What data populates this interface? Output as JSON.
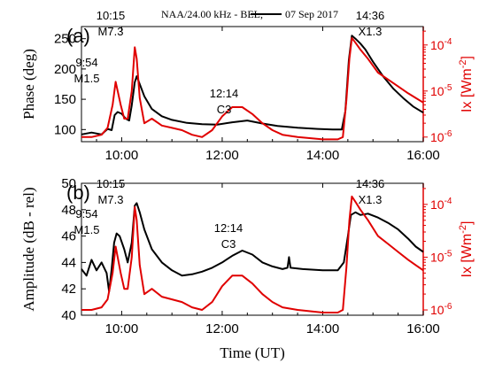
{
  "chart_data": [
    {
      "type": "line",
      "panel_label": "(a)",
      "title": "NAA/24.00 kHz - BEL,",
      "title_date": "07 Sep 2017",
      "ylabel": "Phase (deg)",
      "ylabel_right": "Ix [Wm",
      "ylabel_right_exp": "-2",
      "ylabel_right_close": "]",
      "ylim": [
        80,
        270
      ],
      "yticks": [
        "100",
        "150",
        "200",
        "250"
      ],
      "ylim_right_log10": [
        -6.1,
        -3.6
      ],
      "yticks_right": [
        {
          "mant": "10",
          "exp": "-6"
        },
        {
          "mant": "10",
          "exp": "-5"
        },
        {
          "mant": "10",
          "exp": "-4"
        }
      ],
      "xlim": [
        9.2,
        16.0
      ],
      "annotations": [
        {
          "time": "9:54",
          "cls": "M1.5"
        },
        {
          "time": "10:15",
          "cls": "M7.3"
        },
        {
          "time": "12:14",
          "cls": "C3"
        },
        {
          "time": "14:36",
          "cls": "X1.3"
        }
      ],
      "series": [
        {
          "color": "#000000",
          "axis": "left",
          "points": [
            [
              9.2,
              92
            ],
            [
              9.4,
              95
            ],
            [
              9.6,
              92
            ],
            [
              9.72,
              101
            ],
            [
              9.8,
              99
            ],
            [
              9.86,
              124
            ],
            [
              9.92,
              129
            ],
            [
              10.0,
              126
            ],
            [
              10.08,
              118
            ],
            [
              10.15,
              115
            ],
            [
              10.2,
              140
            ],
            [
              10.26,
              178
            ],
            [
              10.3,
              188
            ],
            [
              10.36,
              175
            ],
            [
              10.45,
              155
            ],
            [
              10.6,
              134
            ],
            [
              10.8,
              122
            ],
            [
              11.0,
              116
            ],
            [
              11.3,
              111
            ],
            [
              11.6,
              109
            ],
            [
              11.9,
              108
            ],
            [
              12.2,
              112
            ],
            [
              12.5,
              115
            ],
            [
              12.8,
              110
            ],
            [
              13.1,
              106
            ],
            [
              13.5,
              103
            ],
            [
              13.9,
              101
            ],
            [
              14.2,
              100
            ],
            [
              14.38,
              100
            ],
            [
              14.45,
              130
            ],
            [
              14.52,
              215
            ],
            [
              14.58,
              255
            ],
            [
              14.65,
              250
            ],
            [
              14.75,
              242
            ],
            [
              14.85,
              232
            ],
            [
              15.0,
              212
            ],
            [
              15.2,
              188
            ],
            [
              15.4,
              168
            ],
            [
              15.6,
              152
            ],
            [
              15.8,
              138
            ],
            [
              16.0,
              128
            ]
          ]
        },
        {
          "color": "#e00000",
          "axis": "right",
          "points": [
            [
              9.2,
              -6.0
            ],
            [
              9.4,
              -6.0
            ],
            [
              9.6,
              -5.95
            ],
            [
              9.72,
              -5.8
            ],
            [
              9.82,
              -5.3
            ],
            [
              9.88,
              -4.8
            ],
            [
              9.92,
              -5.0
            ],
            [
              9.98,
              -5.3
            ],
            [
              10.05,
              -5.6
            ],
            [
              10.12,
              -5.6
            ],
            [
              10.2,
              -5.0
            ],
            [
              10.26,
              -4.05
            ],
            [
              10.3,
              -4.3
            ],
            [
              10.36,
              -5.15
            ],
            [
              10.45,
              -5.7
            ],
            [
              10.6,
              -5.6
            ],
            [
              10.8,
              -5.75
            ],
            [
              11.0,
              -5.8
            ],
            [
              11.2,
              -5.85
            ],
            [
              11.4,
              -5.95
            ],
            [
              11.6,
              -6.0
            ],
            [
              11.8,
              -5.85
            ],
            [
              12.0,
              -5.55
            ],
            [
              12.2,
              -5.35
            ],
            [
              12.4,
              -5.35
            ],
            [
              12.6,
              -5.5
            ],
            [
              12.8,
              -5.7
            ],
            [
              13.0,
              -5.85
            ],
            [
              13.2,
              -5.95
            ],
            [
              13.5,
              -6.0
            ],
            [
              14.0,
              -6.05
            ],
            [
              14.3,
              -6.05
            ],
            [
              14.4,
              -6.0
            ],
            [
              14.47,
              -5.2
            ],
            [
              14.53,
              -4.3
            ],
            [
              14.58,
              -3.85
            ],
            [
              14.65,
              -3.95
            ],
            [
              14.75,
              -4.1
            ],
            [
              14.9,
              -4.3
            ],
            [
              15.1,
              -4.6
            ],
            [
              15.3,
              -4.75
            ],
            [
              15.5,
              -4.9
            ],
            [
              15.7,
              -5.05
            ],
            [
              15.85,
              -5.15
            ],
            [
              16.0,
              -5.25
            ]
          ]
        }
      ]
    },
    {
      "type": "line",
      "panel_label": "(b)",
      "ylabel": "Amplitude (dB - rel)",
      "ylabel_right": "Ix [Wm",
      "ylabel_right_exp": "-2",
      "ylabel_right_close": "]",
      "ylim": [
        40,
        50
      ],
      "yticks": [
        "40",
        "42",
        "44",
        "46",
        "48",
        "50"
      ],
      "ylim_right_log10": [
        -6.1,
        -3.6
      ],
      "yticks_right": [
        {
          "mant": "10",
          "exp": "-6"
        },
        {
          "mant": "10",
          "exp": "-5"
        },
        {
          "mant": "10",
          "exp": "-4"
        }
      ],
      "xlim": [
        9.2,
        16.0
      ],
      "xticks": [
        "10:00",
        "12:00",
        "14:00",
        "16:00"
      ],
      "xtick_values": [
        10,
        12,
        14,
        16
      ],
      "xlabel": "Time (UT)",
      "annotations": [
        {
          "time": "9:54",
          "cls": "M1.5"
        },
        {
          "time": "10:15",
          "cls": "M7.3"
        },
        {
          "time": "12:14",
          "cls": "C3"
        },
        {
          "time": "14:36",
          "cls": "X1.3"
        }
      ],
      "series": [
        {
          "color": "#000000",
          "axis": "left",
          "points": [
            [
              9.2,
              43.5
            ],
            [
              9.3,
              43.0
            ],
            [
              9.4,
              44.2
            ],
            [
              9.5,
              43.4
            ],
            [
              9.6,
              44.0
            ],
            [
              9.7,
              43.2
            ],
            [
              9.75,
              41.8
            ],
            [
              9.8,
              43.5
            ],
            [
              9.85,
              45.5
            ],
            [
              9.9,
              46.2
            ],
            [
              9.96,
              46.0
            ],
            [
              10.05,
              45.0
            ],
            [
              10.12,
              44.0
            ],
            [
              10.2,
              45.5
            ],
            [
              10.26,
              48.3
            ],
            [
              10.3,
              48.5
            ],
            [
              10.36,
              47.8
            ],
            [
              10.45,
              46.5
            ],
            [
              10.6,
              45.0
            ],
            [
              10.8,
              44.0
            ],
            [
              11.0,
              43.4
            ],
            [
              11.2,
              43.0
            ],
            [
              11.4,
              43.1
            ],
            [
              11.6,
              43.3
            ],
            [
              11.8,
              43.6
            ],
            [
              12.0,
              44.0
            ],
            [
              12.2,
              44.5
            ],
            [
              12.4,
              44.9
            ],
            [
              12.6,
              44.6
            ],
            [
              12.8,
              44.0
            ],
            [
              13.0,
              43.7
            ],
            [
              13.2,
              43.5
            ],
            [
              13.3,
              43.6
            ],
            [
              13.33,
              44.4
            ],
            [
              13.36,
              43.6
            ],
            [
              13.6,
              43.5
            ],
            [
              14.0,
              43.4
            ],
            [
              14.3,
              43.4
            ],
            [
              14.42,
              44.0
            ],
            [
              14.5,
              46.0
            ],
            [
              14.56,
              47.6
            ],
            [
              14.65,
              47.8
            ],
            [
              14.75,
              47.6
            ],
            [
              14.9,
              47.7
            ],
            [
              15.1,
              47.4
            ],
            [
              15.3,
              47.0
            ],
            [
              15.5,
              46.5
            ],
            [
              15.7,
              45.8
            ],
            [
              15.85,
              45.2
            ],
            [
              16.0,
              44.8
            ]
          ]
        },
        {
          "color": "#e00000",
          "axis": "right",
          "points": [
            [
              9.2,
              -6.0
            ],
            [
              9.4,
              -6.0
            ],
            [
              9.6,
              -5.95
            ],
            [
              9.72,
              -5.8
            ],
            [
              9.82,
              -5.3
            ],
            [
              9.88,
              -4.8
            ],
            [
              9.92,
              -5.0
            ],
            [
              9.98,
              -5.3
            ],
            [
              10.05,
              -5.6
            ],
            [
              10.12,
              -5.6
            ],
            [
              10.2,
              -5.0
            ],
            [
              10.26,
              -4.05
            ],
            [
              10.3,
              -4.3
            ],
            [
              10.36,
              -5.15
            ],
            [
              10.45,
              -5.7
            ],
            [
              10.6,
              -5.6
            ],
            [
              10.8,
              -5.75
            ],
            [
              11.0,
              -5.8
            ],
            [
              11.2,
              -5.85
            ],
            [
              11.4,
              -5.95
            ],
            [
              11.6,
              -6.0
            ],
            [
              11.8,
              -5.85
            ],
            [
              12.0,
              -5.55
            ],
            [
              12.2,
              -5.35
            ],
            [
              12.4,
              -5.35
            ],
            [
              12.6,
              -5.5
            ],
            [
              12.8,
              -5.7
            ],
            [
              13.0,
              -5.85
            ],
            [
              13.2,
              -5.95
            ],
            [
              13.5,
              -6.0
            ],
            [
              14.0,
              -6.05
            ],
            [
              14.3,
              -6.05
            ],
            [
              14.4,
              -6.0
            ],
            [
              14.47,
              -5.2
            ],
            [
              14.53,
              -4.3
            ],
            [
              14.58,
              -3.85
            ],
            [
              14.65,
              -3.95
            ],
            [
              14.75,
              -4.1
            ],
            [
              14.9,
              -4.3
            ],
            [
              15.1,
              -4.6
            ],
            [
              15.3,
              -4.75
            ],
            [
              15.5,
              -4.9
            ],
            [
              15.7,
              -5.05
            ],
            [
              15.85,
              -5.15
            ],
            [
              16.0,
              -5.25
            ]
          ]
        }
      ]
    }
  ]
}
